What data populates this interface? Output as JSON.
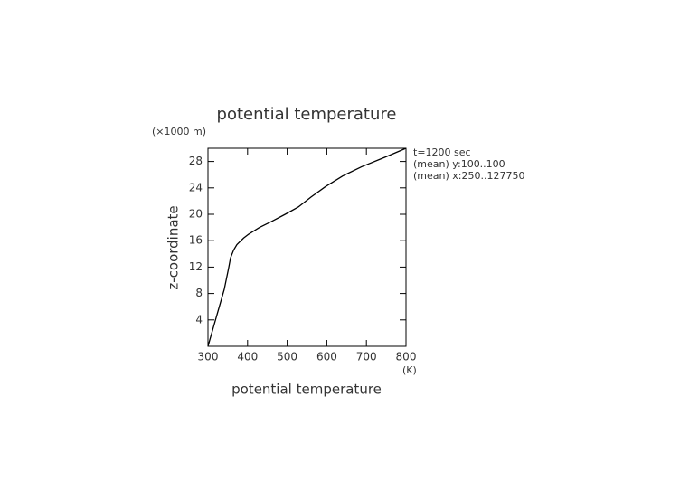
{
  "chart_data": {
    "type": "line",
    "title": "potential temperature",
    "x_label": "potential temperature",
    "x_unit": "(K)",
    "y_label": "z-coordinate",
    "y_unit": "(×1000 m)",
    "annotations": [
      "t=1200 sec",
      "(mean) y:100..100",
      "(mean) x:250..127750"
    ],
    "xlim": [
      300,
      800
    ],
    "ylim": [
      0,
      30
    ],
    "xticks": [
      300,
      400,
      500,
      600,
      700,
      800
    ],
    "yticks": [
      4,
      8,
      12,
      16,
      20,
      24,
      28
    ],
    "series": [
      {
        "color": "#000000",
        "x": [
          300,
          320,
          341,
          352,
          357,
          365,
          373,
          390,
          403,
          430,
          460,
          495,
          528,
          560,
          597,
          640,
          688,
          745,
          800
        ],
        "values": [
          0,
          4.2,
          8.6,
          11.8,
          13.4,
          14.6,
          15.4,
          16.4,
          17.0,
          18.0,
          18.9,
          20.0,
          21.1,
          22.6,
          24.2,
          25.8,
          27.2,
          28.6,
          30
        ]
      }
    ]
  }
}
